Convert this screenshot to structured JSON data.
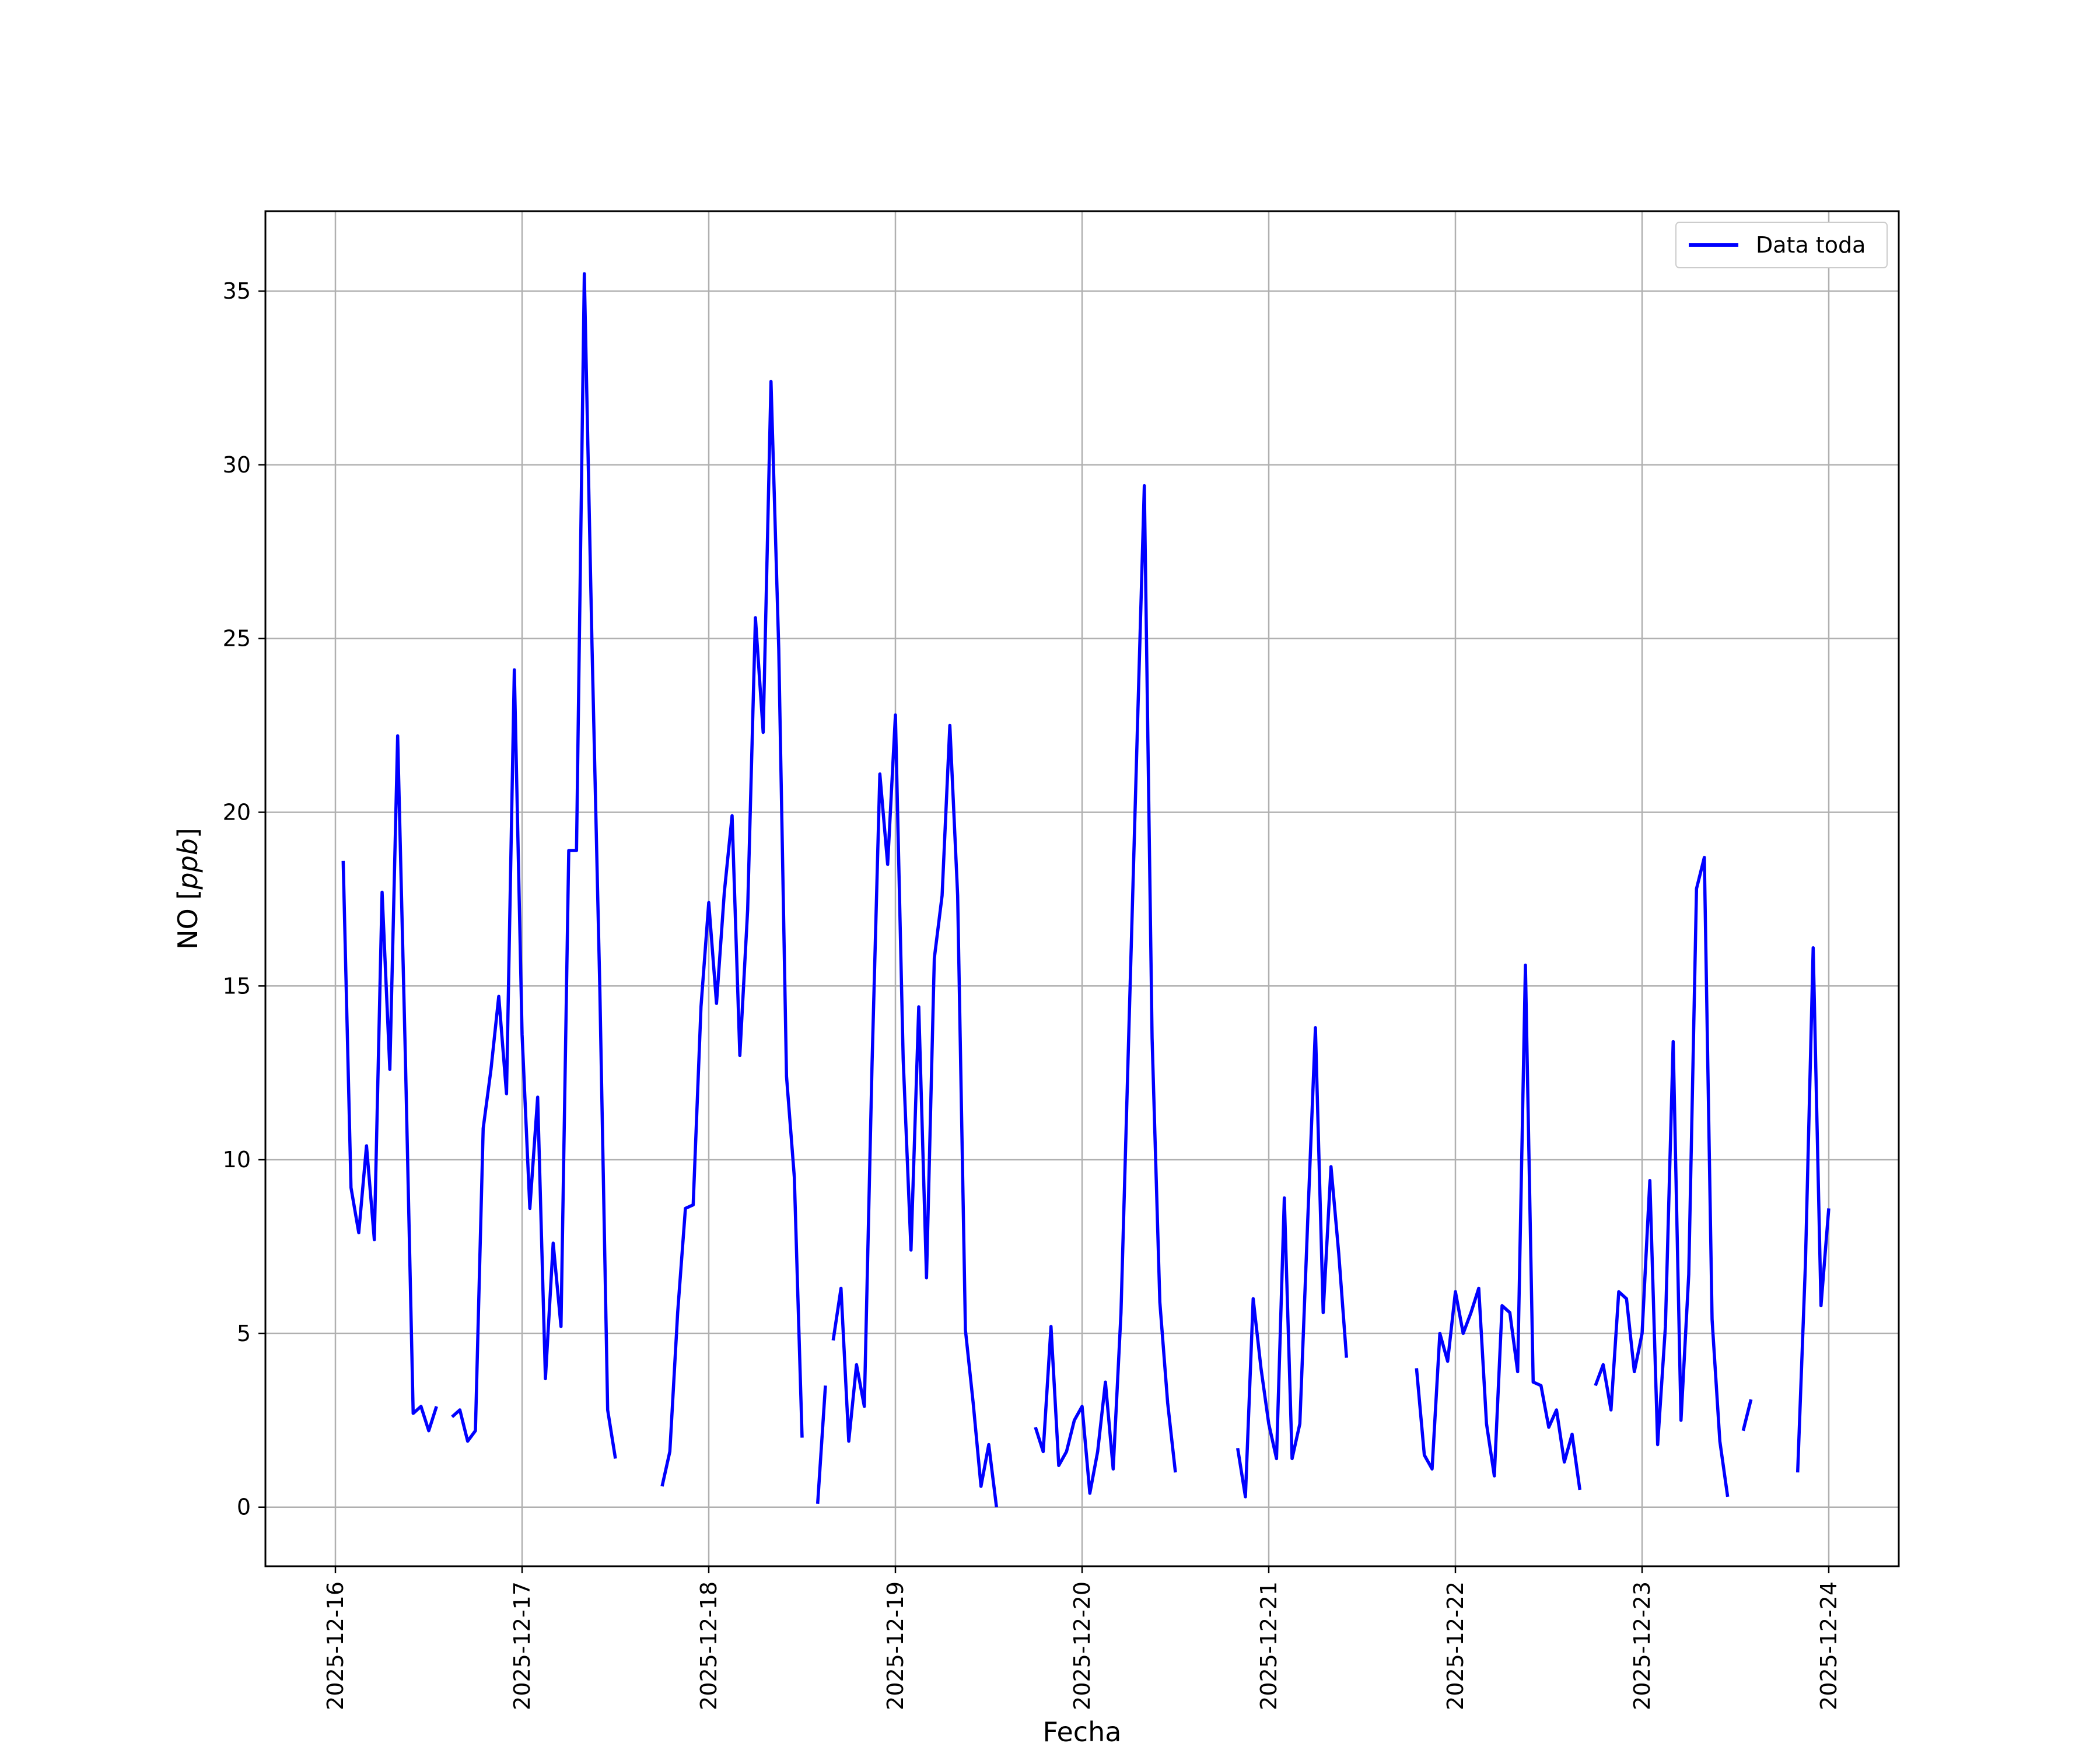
{
  "chart_data": {
    "type": "line",
    "xlabel": "Fecha",
    "ylabel_prefix": "NO [",
    "ylabel_unit": "ppb",
    "ylabel_suffix": "]",
    "ylim": [
      -1.7,
      37.3
    ],
    "xlim": [
      "2025-12-15T15:00",
      "2025-12-24T09:00"
    ],
    "grid": true,
    "legend_position": "top-right",
    "x_ticks": [
      "2025-12-16",
      "2025-12-17",
      "2025-12-18",
      "2025-12-19",
      "2025-12-20",
      "2025-12-21",
      "2025-12-22",
      "2025-12-23",
      "2025-12-24"
    ],
    "y_ticks": [
      0,
      5,
      10,
      15,
      20,
      25,
      30,
      35
    ],
    "series": [
      {
        "name": "Data toda",
        "color": "#0000ff",
        "segments": [
          [
            [
              "2025-12-16T01:00",
              18.6
            ],
            [
              "2025-12-16T02:00",
              9.2
            ],
            [
              "2025-12-16T03:00",
              7.9
            ],
            [
              "2025-12-16T04:00",
              10.4
            ],
            [
              "2025-12-16T05:00",
              7.7
            ],
            [
              "2025-12-16T06:00",
              17.7
            ],
            [
              "2025-12-16T07:00",
              12.6
            ],
            [
              "2025-12-16T08:00",
              22.2
            ],
            [
              "2025-12-16T09:00",
              12.9
            ],
            [
              "2025-12-16T10:00",
              2.7
            ],
            [
              "2025-12-16T11:00",
              2.9
            ],
            [
              "2025-12-16T12:00",
              2.2
            ],
            [
              "2025-12-16T13:00",
              2.9
            ]
          ],
          [
            [
              "2025-12-16T15:00",
              2.6
            ],
            [
              "2025-12-16T16:00",
              2.8
            ],
            [
              "2025-12-16T17:00",
              1.9
            ],
            [
              "2025-12-16T18:00",
              2.2
            ],
            [
              "2025-12-16T19:00",
              10.9
            ],
            [
              "2025-12-16T20:00",
              12.6
            ],
            [
              "2025-12-16T21:00",
              14.7
            ],
            [
              "2025-12-16T22:00",
              11.9
            ],
            [
              "2025-12-16T23:00",
              24.1
            ],
            [
              "2025-12-17T00:00",
              13.6
            ],
            [
              "2025-12-17T01:00",
              8.6
            ],
            [
              "2025-12-17T02:00",
              11.8
            ],
            [
              "2025-12-17T03:00",
              3.7
            ],
            [
              "2025-12-17T04:00",
              7.6
            ],
            [
              "2025-12-17T05:00",
              5.2
            ],
            [
              "2025-12-17T06:00",
              18.9
            ],
            [
              "2025-12-17T07:00",
              18.9
            ],
            [
              "2025-12-17T08:00",
              35.5
            ],
            [
              "2025-12-17T09:00",
              24.7
            ],
            [
              "2025-12-17T10:00",
              14.9
            ],
            [
              "2025-12-17T11:00",
              2.8
            ],
            [
              "2025-12-17T12:00",
              1.4
            ]
          ],
          [
            [
              "2025-12-17T18:00",
              0.6
            ],
            [
              "2025-12-17T19:00",
              1.6
            ],
            [
              "2025-12-17T20:00",
              5.6
            ],
            [
              "2025-12-17T21:00",
              8.6
            ],
            [
              "2025-12-17T22:00",
              8.7
            ],
            [
              "2025-12-17T23:00",
              14.4
            ],
            [
              "2025-12-18T00:00",
              17.4
            ],
            [
              "2025-12-18T01:00",
              14.5
            ],
            [
              "2025-12-18T02:00",
              17.7
            ],
            [
              "2025-12-18T03:00",
              19.9
            ],
            [
              "2025-12-18T04:00",
              13.0
            ],
            [
              "2025-12-18T05:00",
              17.2
            ],
            [
              "2025-12-18T06:00",
              25.6
            ],
            [
              "2025-12-18T07:00",
              22.3
            ],
            [
              "2025-12-18T08:00",
              32.4
            ],
            [
              "2025-12-18T09:00",
              24.7
            ],
            [
              "2025-12-18T10:00",
              12.4
            ],
            [
              "2025-12-18T11:00",
              9.5
            ],
            [
              "2025-12-18T12:00",
              2.0
            ]
          ],
          [
            [
              "2025-12-18T14:00",
              0.1
            ],
            [
              "2025-12-18T15:00",
              3.5
            ]
          ],
          [
            [
              "2025-12-18T16:00",
              4.8
            ],
            [
              "2025-12-18T17:00",
              6.3
            ],
            [
              "2025-12-18T18:00",
              1.9
            ],
            [
              "2025-12-18T19:00",
              4.1
            ],
            [
              "2025-12-18T20:00",
              2.9
            ],
            [
              "2025-12-18T21:00",
              12.8
            ],
            [
              "2025-12-18T22:00",
              21.1
            ],
            [
              "2025-12-18T23:00",
              18.5
            ],
            [
              "2025-12-19T00:00",
              22.8
            ],
            [
              "2025-12-19T01:00",
              12.9
            ],
            [
              "2025-12-19T02:00",
              7.4
            ],
            [
              "2025-12-19T03:00",
              14.4
            ],
            [
              "2025-12-19T04:00",
              6.6
            ],
            [
              "2025-12-19T05:00",
              15.8
            ],
            [
              "2025-12-19T06:00",
              17.6
            ],
            [
              "2025-12-19T07:00",
              22.5
            ],
            [
              "2025-12-19T08:00",
              17.6
            ],
            [
              "2025-12-19T09:00",
              5.1
            ],
            [
              "2025-12-19T10:00",
              3.0
            ],
            [
              "2025-12-19T11:00",
              0.6
            ],
            [
              "2025-12-19T12:00",
              1.8
            ],
            [
              "2025-12-19T13:00",
              0.0
            ]
          ],
          [
            [
              "2025-12-19T18:00",
              2.3
            ],
            [
              "2025-12-19T19:00",
              1.6
            ],
            [
              "2025-12-19T20:00",
              5.2
            ],
            [
              "2025-12-19T21:00",
              1.2
            ],
            [
              "2025-12-19T22:00",
              1.6
            ],
            [
              "2025-12-19T23:00",
              2.5
            ],
            [
              "2025-12-20T00:00",
              2.9
            ],
            [
              "2025-12-20T01:00",
              0.4
            ],
            [
              "2025-12-20T02:00",
              1.6
            ],
            [
              "2025-12-20T03:00",
              3.6
            ],
            [
              "2025-12-20T04:00",
              1.1
            ],
            [
              "2025-12-20T05:00",
              5.6
            ],
            [
              "2025-12-20T06:00",
              13.6
            ],
            [
              "2025-12-20T07:00",
              21.5
            ],
            [
              "2025-12-20T08:00",
              29.4
            ],
            [
              "2025-12-20T09:00",
              13.5
            ],
            [
              "2025-12-20T10:00",
              5.9
            ],
            [
              "2025-12-20T11:00",
              3.0
            ],
            [
              "2025-12-20T12:00",
              1.0
            ]
          ],
          [
            [
              "2025-12-20T20:00",
              1.7
            ],
            [
              "2025-12-20T21:00",
              0.3
            ],
            [
              "2025-12-20T22:00",
              6.0
            ],
            [
              "2025-12-20T23:00",
              4.0
            ],
            [
              "2025-12-21T00:00",
              2.4
            ],
            [
              "2025-12-21T01:00",
              1.4
            ],
            [
              "2025-12-21T02:00",
              8.9
            ],
            [
              "2025-12-21T03:00",
              1.4
            ],
            [
              "2025-12-21T04:00",
              2.4
            ],
            [
              "2025-12-21T05:00",
              8.2
            ],
            [
              "2025-12-21T06:00",
              13.8
            ],
            [
              "2025-12-21T07:00",
              5.6
            ],
            [
              "2025-12-21T08:00",
              9.8
            ],
            [
              "2025-12-21T09:00",
              7.3
            ],
            [
              "2025-12-21T10:00",
              4.3
            ]
          ],
          [
            [
              "2025-12-21T19:00",
              4.0
            ],
            [
              "2025-12-21T20:00",
              1.5
            ],
            [
              "2025-12-21T21:00",
              1.1
            ],
            [
              "2025-12-21T22:00",
              5.0
            ],
            [
              "2025-12-21T23:00",
              4.2
            ],
            [
              "2025-12-22T00:00",
              6.2
            ],
            [
              "2025-12-22T01:00",
              5.0
            ],
            [
              "2025-12-22T02:00",
              5.6
            ],
            [
              "2025-12-22T03:00",
              6.3
            ],
            [
              "2025-12-22T04:00",
              2.4
            ],
            [
              "2025-12-22T05:00",
              0.9
            ],
            [
              "2025-12-22T06:00",
              5.8
            ],
            [
              "2025-12-22T07:00",
              5.6
            ],
            [
              "2025-12-22T08:00",
              3.9
            ],
            [
              "2025-12-22T09:00",
              15.6
            ],
            [
              "2025-12-22T10:00",
              3.6
            ],
            [
              "2025-12-22T11:00",
              3.5
            ],
            [
              "2025-12-22T12:00",
              2.3
            ],
            [
              "2025-12-22T13:00",
              2.8
            ],
            [
              "2025-12-22T14:00",
              1.3
            ],
            [
              "2025-12-22T15:00",
              2.1
            ],
            [
              "2025-12-22T16:00",
              0.5
            ]
          ],
          [
            [
              "2025-12-22T18:00",
              3.5
            ],
            [
              "2025-12-22T19:00",
              4.1
            ],
            [
              "2025-12-22T20:00",
              2.8
            ],
            [
              "2025-12-22T21:00",
              6.2
            ],
            [
              "2025-12-22T22:00",
              6.0
            ],
            [
              "2025-12-22T23:00",
              3.9
            ],
            [
              "2025-12-23T00:00",
              5.0
            ],
            [
              "2025-12-23T01:00",
              9.4
            ],
            [
              "2025-12-23T02:00",
              1.8
            ],
            [
              "2025-12-23T03:00",
              5.2
            ],
            [
              "2025-12-23T04:00",
              13.4
            ],
            [
              "2025-12-23T05:00",
              2.5
            ],
            [
              "2025-12-23T06:00",
              6.7
            ],
            [
              "2025-12-23T07:00",
              17.8
            ],
            [
              "2025-12-23T08:00",
              18.7
            ],
            [
              "2025-12-23T09:00",
              5.4
            ],
            [
              "2025-12-23T10:00",
              1.9
            ],
            [
              "2025-12-23T11:00",
              0.3
            ]
          ],
          [
            [
              "2025-12-23T13:00",
              2.2
            ],
            [
              "2025-12-23T14:00",
              3.1
            ]
          ],
          [
            [
              "2025-12-23T20:00",
              1.0
            ],
            [
              "2025-12-23T21:00",
              7.0
            ],
            [
              "2025-12-23T22:00",
              16.1
            ],
            [
              "2025-12-23T23:00",
              5.8
            ],
            [
              "2025-12-24T00:00",
              8.6
            ]
          ]
        ]
      }
    ]
  }
}
